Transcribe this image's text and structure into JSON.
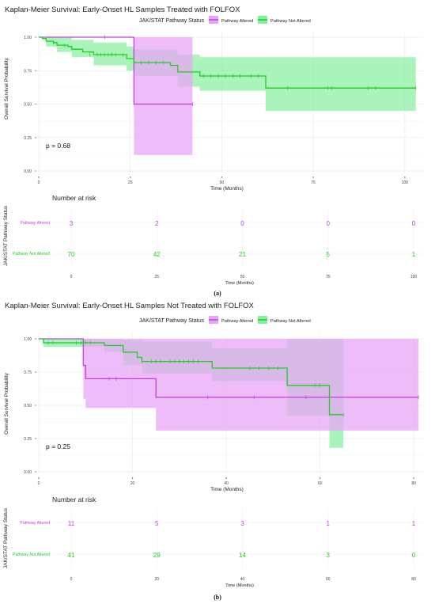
{
  "colors": {
    "altered": "#C140E0",
    "not_altered": "#1FCC1F",
    "altered_band": "#E8A5F5",
    "not_altered_band": "#86EE9C",
    "grid": "#E6E6E6"
  },
  "panels": [
    {
      "label": "(a)",
      "risk_header": "Number at risk",
      "risk_ylabel": "JAK/STAT Pathway Status",
      "risk_rows": [
        {
          "name": "Pathway Altered",
          "values": [
            "3",
            "2",
            "0",
            "0",
            "0"
          ]
        },
        {
          "name": "Pathway Not Altered",
          "values": [
            "70",
            "42",
            "21",
            "5",
            "1"
          ]
        }
      ],
      "risk_xlabel": "Time (Months)"
    },
    {
      "label": "(b)",
      "risk_header": "Number at risk",
      "risk_ylabel": "JAK/STAT Pathway Status",
      "risk_rows": [
        {
          "name": "Pathway Altered",
          "values": [
            "11",
            "5",
            "3",
            "1",
            "1"
          ]
        },
        {
          "name": "Pathway Not Altered",
          "values": [
            "41",
            "29",
            "14",
            "3",
            "0"
          ]
        }
      ],
      "risk_xlabel": "Time (Months)"
    }
  ],
  "chart_data": [
    {
      "type": "line",
      "title": "Kaplan-Meier Survival: Early-Onset HL Samples Treated with FOLFOX",
      "legend_title": "JAK/STAT Pathway Status",
      "legend_position": "top",
      "xlabel": "Time (Months)",
      "ylabel": "Overall Survival Probability",
      "xlim": [
        0,
        105
      ],
      "ylim": [
        0,
        1
      ],
      "xticks": [
        "0",
        "25",
        "50",
        "75",
        "100"
      ],
      "yticks": [
        "0.00",
        "0.25",
        "0.50",
        "0.75",
        "1.00"
      ],
      "annotation": "p = 0.68",
      "series": [
        {
          "name": "Pathway Altered",
          "step": [
            [
              0,
              1.0
            ],
            [
              26,
              1.0
            ],
            [
              26,
              0.5
            ],
            [
              42,
              0.5
            ]
          ],
          "censor": [
            [
              18,
              1.0
            ],
            [
              42,
              0.5
            ]
          ],
          "ci": [
            [
              0,
              1.0,
              1.0
            ],
            [
              26,
              1.0,
              1.0
            ],
            [
              26,
              0.12,
              1.0
            ],
            [
              42,
              0.12,
              1.0
            ]
          ]
        },
        {
          "name": "Pathway Not Altered",
          "step": [
            [
              0,
              1.0
            ],
            [
              1,
              0.99
            ],
            [
              2,
              0.97
            ],
            [
              4,
              0.96
            ],
            [
              5,
              0.94
            ],
            [
              8,
              0.93
            ],
            [
              9,
              0.91
            ],
            [
              12,
              0.89
            ],
            [
              15,
              0.87
            ],
            [
              24,
              0.84
            ],
            [
              26,
              0.81
            ],
            [
              36,
              0.79
            ],
            [
              38,
              0.74
            ],
            [
              44,
              0.71
            ],
            [
              62,
              0.71
            ],
            [
              62,
              0.62
            ],
            [
              103,
              0.62
            ]
          ],
          "censor": [
            [
              4,
              0.96
            ],
            [
              7,
              0.94
            ],
            [
              14,
              0.87
            ],
            [
              16,
              0.87
            ],
            [
              17,
              0.87
            ],
            [
              18,
              0.87
            ],
            [
              19,
              0.87
            ],
            [
              20,
              0.87
            ],
            [
              21,
              0.87
            ],
            [
              23,
              0.87
            ],
            [
              28,
              0.81
            ],
            [
              30,
              0.81
            ],
            [
              32,
              0.81
            ],
            [
              34,
              0.81
            ],
            [
              45,
              0.71
            ],
            [
              47,
              0.71
            ],
            [
              49,
              0.71
            ],
            [
              51,
              0.71
            ],
            [
              53,
              0.71
            ],
            [
              55,
              0.71
            ],
            [
              58,
              0.71
            ],
            [
              60,
              0.71
            ],
            [
              68,
              0.62
            ],
            [
              79,
              0.62
            ],
            [
              80,
              0.62
            ],
            [
              90,
              0.62
            ],
            [
              92,
              0.62
            ],
            [
              103,
              0.62
            ]
          ],
          "ci": [
            [
              0,
              1.0,
              1.0
            ],
            [
              2,
              0.93,
              1.0
            ],
            [
              5,
              0.89,
              1.0
            ],
            [
              9,
              0.85,
              0.98
            ],
            [
              15,
              0.79,
              0.96
            ],
            [
              24,
              0.75,
              0.93
            ],
            [
              26,
              0.71,
              0.91
            ],
            [
              38,
              0.63,
              0.87
            ],
            [
              44,
              0.6,
              0.85
            ],
            [
              62,
              0.6,
              0.85
            ],
            [
              62,
              0.45,
              0.85
            ],
            [
              103,
              0.45,
              0.85
            ]
          ]
        }
      ]
    },
    {
      "type": "line",
      "title": "Kaplan-Meier Survival: Early-Onset HL Samples Not Treated with FOLFOX",
      "legend_title": "JAK/STAT Pathway Status",
      "legend_position": "top",
      "xlabel": "Time (Months)",
      "ylabel": "Overall Survival Probability",
      "xlim": [
        0,
        82
      ],
      "ylim": [
        0,
        1
      ],
      "xticks": [
        "0",
        "20",
        "40",
        "60",
        "80"
      ],
      "yticks": [
        "0.00",
        "0.25",
        "0.50",
        "0.75",
        "1.00"
      ],
      "annotation": "p = 0.25",
      "series": [
        {
          "name": "Pathway Altered",
          "step": [
            [
              0,
              1.0
            ],
            [
              9.5,
              1.0
            ],
            [
              9.5,
              0.8
            ],
            [
              10,
              0.8
            ],
            [
              10,
              0.7
            ],
            [
              25,
              0.7
            ],
            [
              25,
              0.56
            ],
            [
              81,
              0.56
            ]
          ],
          "censor": [
            [
              15,
              0.7
            ],
            [
              16.5,
              0.7
            ],
            [
              36,
              0.56
            ],
            [
              46,
              0.56
            ],
            [
              57,
              0.56
            ],
            [
              81,
              0.56
            ]
          ],
          "ci": [
            [
              0,
              1.0,
              1.0
            ],
            [
              9.5,
              1.0,
              1.0
            ],
            [
              9.5,
              0.55,
              1.0
            ],
            [
              10,
              0.48,
              1.0
            ],
            [
              25,
              0.48,
              1.0
            ],
            [
              25,
              0.31,
              1.0
            ],
            [
              81,
              0.31,
              1.0
            ]
          ]
        },
        {
          "name": "Pathway Not Altered",
          "step": [
            [
              0,
              1.0
            ],
            [
              1,
              0.97
            ],
            [
              14,
              0.95
            ],
            [
              18,
              0.9
            ],
            [
              21,
              0.86
            ],
            [
              22,
              0.83
            ],
            [
              37,
              0.83
            ],
            [
              37,
              0.78
            ],
            [
              53,
              0.78
            ],
            [
              53,
              0.65
            ],
            [
              62,
              0.65
            ],
            [
              62,
              0.43
            ],
            [
              65,
              0.43
            ]
          ],
          "censor": [
            [
              2,
              0.97
            ],
            [
              3,
              0.97
            ],
            [
              8,
              0.97
            ],
            [
              9,
              0.97
            ],
            [
              10,
              0.97
            ],
            [
              11,
              0.97
            ],
            [
              22,
              0.83
            ],
            [
              24,
              0.83
            ],
            [
              25,
              0.83
            ],
            [
              26,
              0.83
            ],
            [
              28,
              0.83
            ],
            [
              29,
              0.83
            ],
            [
              30,
              0.83
            ],
            [
              31,
              0.83
            ],
            [
              32,
              0.83
            ],
            [
              33,
              0.83
            ],
            [
              34,
              0.83
            ],
            [
              45,
              0.78
            ],
            [
              47,
              0.78
            ],
            [
              49,
              0.78
            ],
            [
              51,
              0.78
            ],
            [
              59,
              0.65
            ],
            [
              60,
              0.65
            ],
            [
              65,
              0.43
            ]
          ],
          "ci": [
            [
              0,
              1.0,
              1.0
            ],
            [
              1,
              0.94,
              1.0
            ],
            [
              14,
              0.9,
              1.0
            ],
            [
              18,
              0.8,
              0.99
            ],
            [
              22,
              0.74,
              0.98
            ],
            [
              37,
              0.68,
              0.93
            ],
            [
              53,
              0.42,
              1.0
            ],
            [
              62,
              0.18,
              1.0
            ],
            [
              65,
              0.18,
              1.0
            ]
          ]
        }
      ]
    }
  ]
}
